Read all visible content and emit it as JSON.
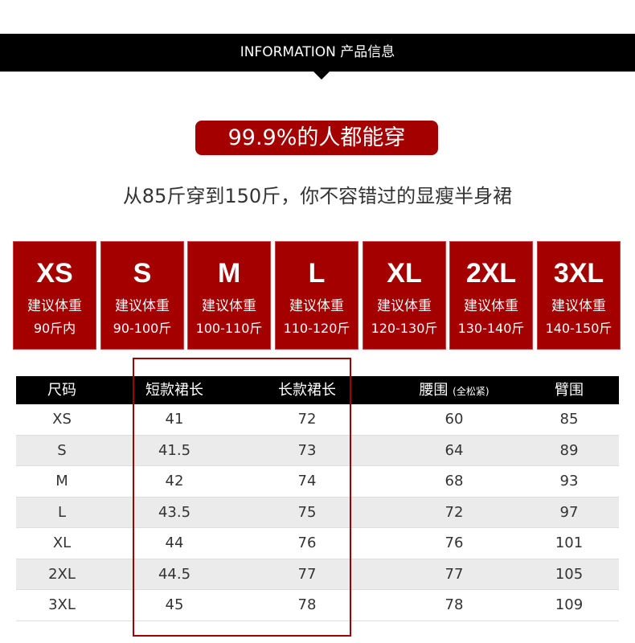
{
  "header": {
    "title": "INFORMATION 产品信息"
  },
  "badge": "99.9%的人都能穿",
  "subtitle": "从85斤穿到150斤，你不容错过的显瘦半身裙",
  "cards": [
    {
      "size": "XS",
      "label": "建议体重",
      "range": "90斤内"
    },
    {
      "size": "S",
      "label": "建议体重",
      "range": "90-100斤"
    },
    {
      "size": "M",
      "label": "建议体重",
      "range": "100-110斤"
    },
    {
      "size": "L",
      "label": "建议体重",
      "range": "110-120斤"
    },
    {
      "size": "XL",
      "label": "建议体重",
      "range": "120-130斤"
    },
    {
      "size": "2XL",
      "label": "建议体重",
      "range": "130-140斤"
    },
    {
      "size": "3XL",
      "label": "建议体重",
      "range": "140-150斤"
    }
  ],
  "table": {
    "headers": [
      "尺码",
      "短款裙长",
      "长款裙长",
      "腰围",
      "臂围"
    ],
    "header_note": "(全松紧)",
    "rows": [
      [
        "XS",
        "41",
        "72",
        "60",
        "85"
      ],
      [
        "S",
        "41.5",
        "73",
        "64",
        "89"
      ],
      [
        "M",
        "42",
        "74",
        "68",
        "93"
      ],
      [
        "L",
        "43.5",
        "75",
        "72",
        "97"
      ],
      [
        "XL",
        "44",
        "76",
        "76",
        "101"
      ],
      [
        "2XL",
        "44.5",
        "77",
        "77",
        "105"
      ],
      [
        "3XL",
        "45",
        "78",
        "78",
        "109"
      ]
    ]
  }
}
